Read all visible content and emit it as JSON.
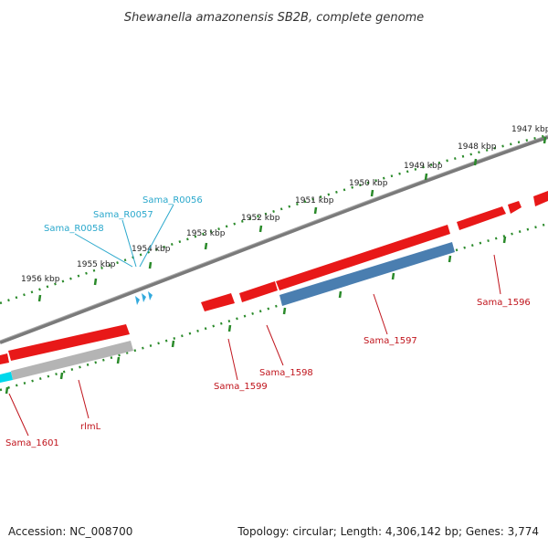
{
  "title": "Shewanella amazonensis SB2B, complete genome",
  "footer": {
    "accession": "Accession: NC_008700",
    "summary": "Topology: circular; Length: 4,306,142 bp; Genes: 3,774"
  },
  "colors": {
    "backbone": "#7a7a7a",
    "gene_red": "#e81818",
    "gene_blue": "#4a7eb0",
    "gene_gray": "#b4b4b4",
    "gene_cyan": "#00d8ec",
    "rna_blue": "#33aadd",
    "tick_green": "#2a8a2a",
    "label_red": "#c0141c",
    "label_cyan": "#2aa8cc"
  },
  "ruler_labels": [
    "1947 kbp",
    "1948 kbp",
    "1949 kbp",
    "1950 kbp",
    "1951 kbp",
    "1952 kbp",
    "1953 kbp",
    "1954 kbp",
    "1955 kbp",
    "1956 kbp"
  ],
  "gene_labels": [
    "Sama_1596",
    "Sama_1597",
    "Sama_1598",
    "Sama_1599",
    "rlmL",
    "Sama_1601"
  ],
  "rna_labels": [
    "Sama_R0056",
    "Sama_R0057",
    "Sama_R0058"
  ]
}
